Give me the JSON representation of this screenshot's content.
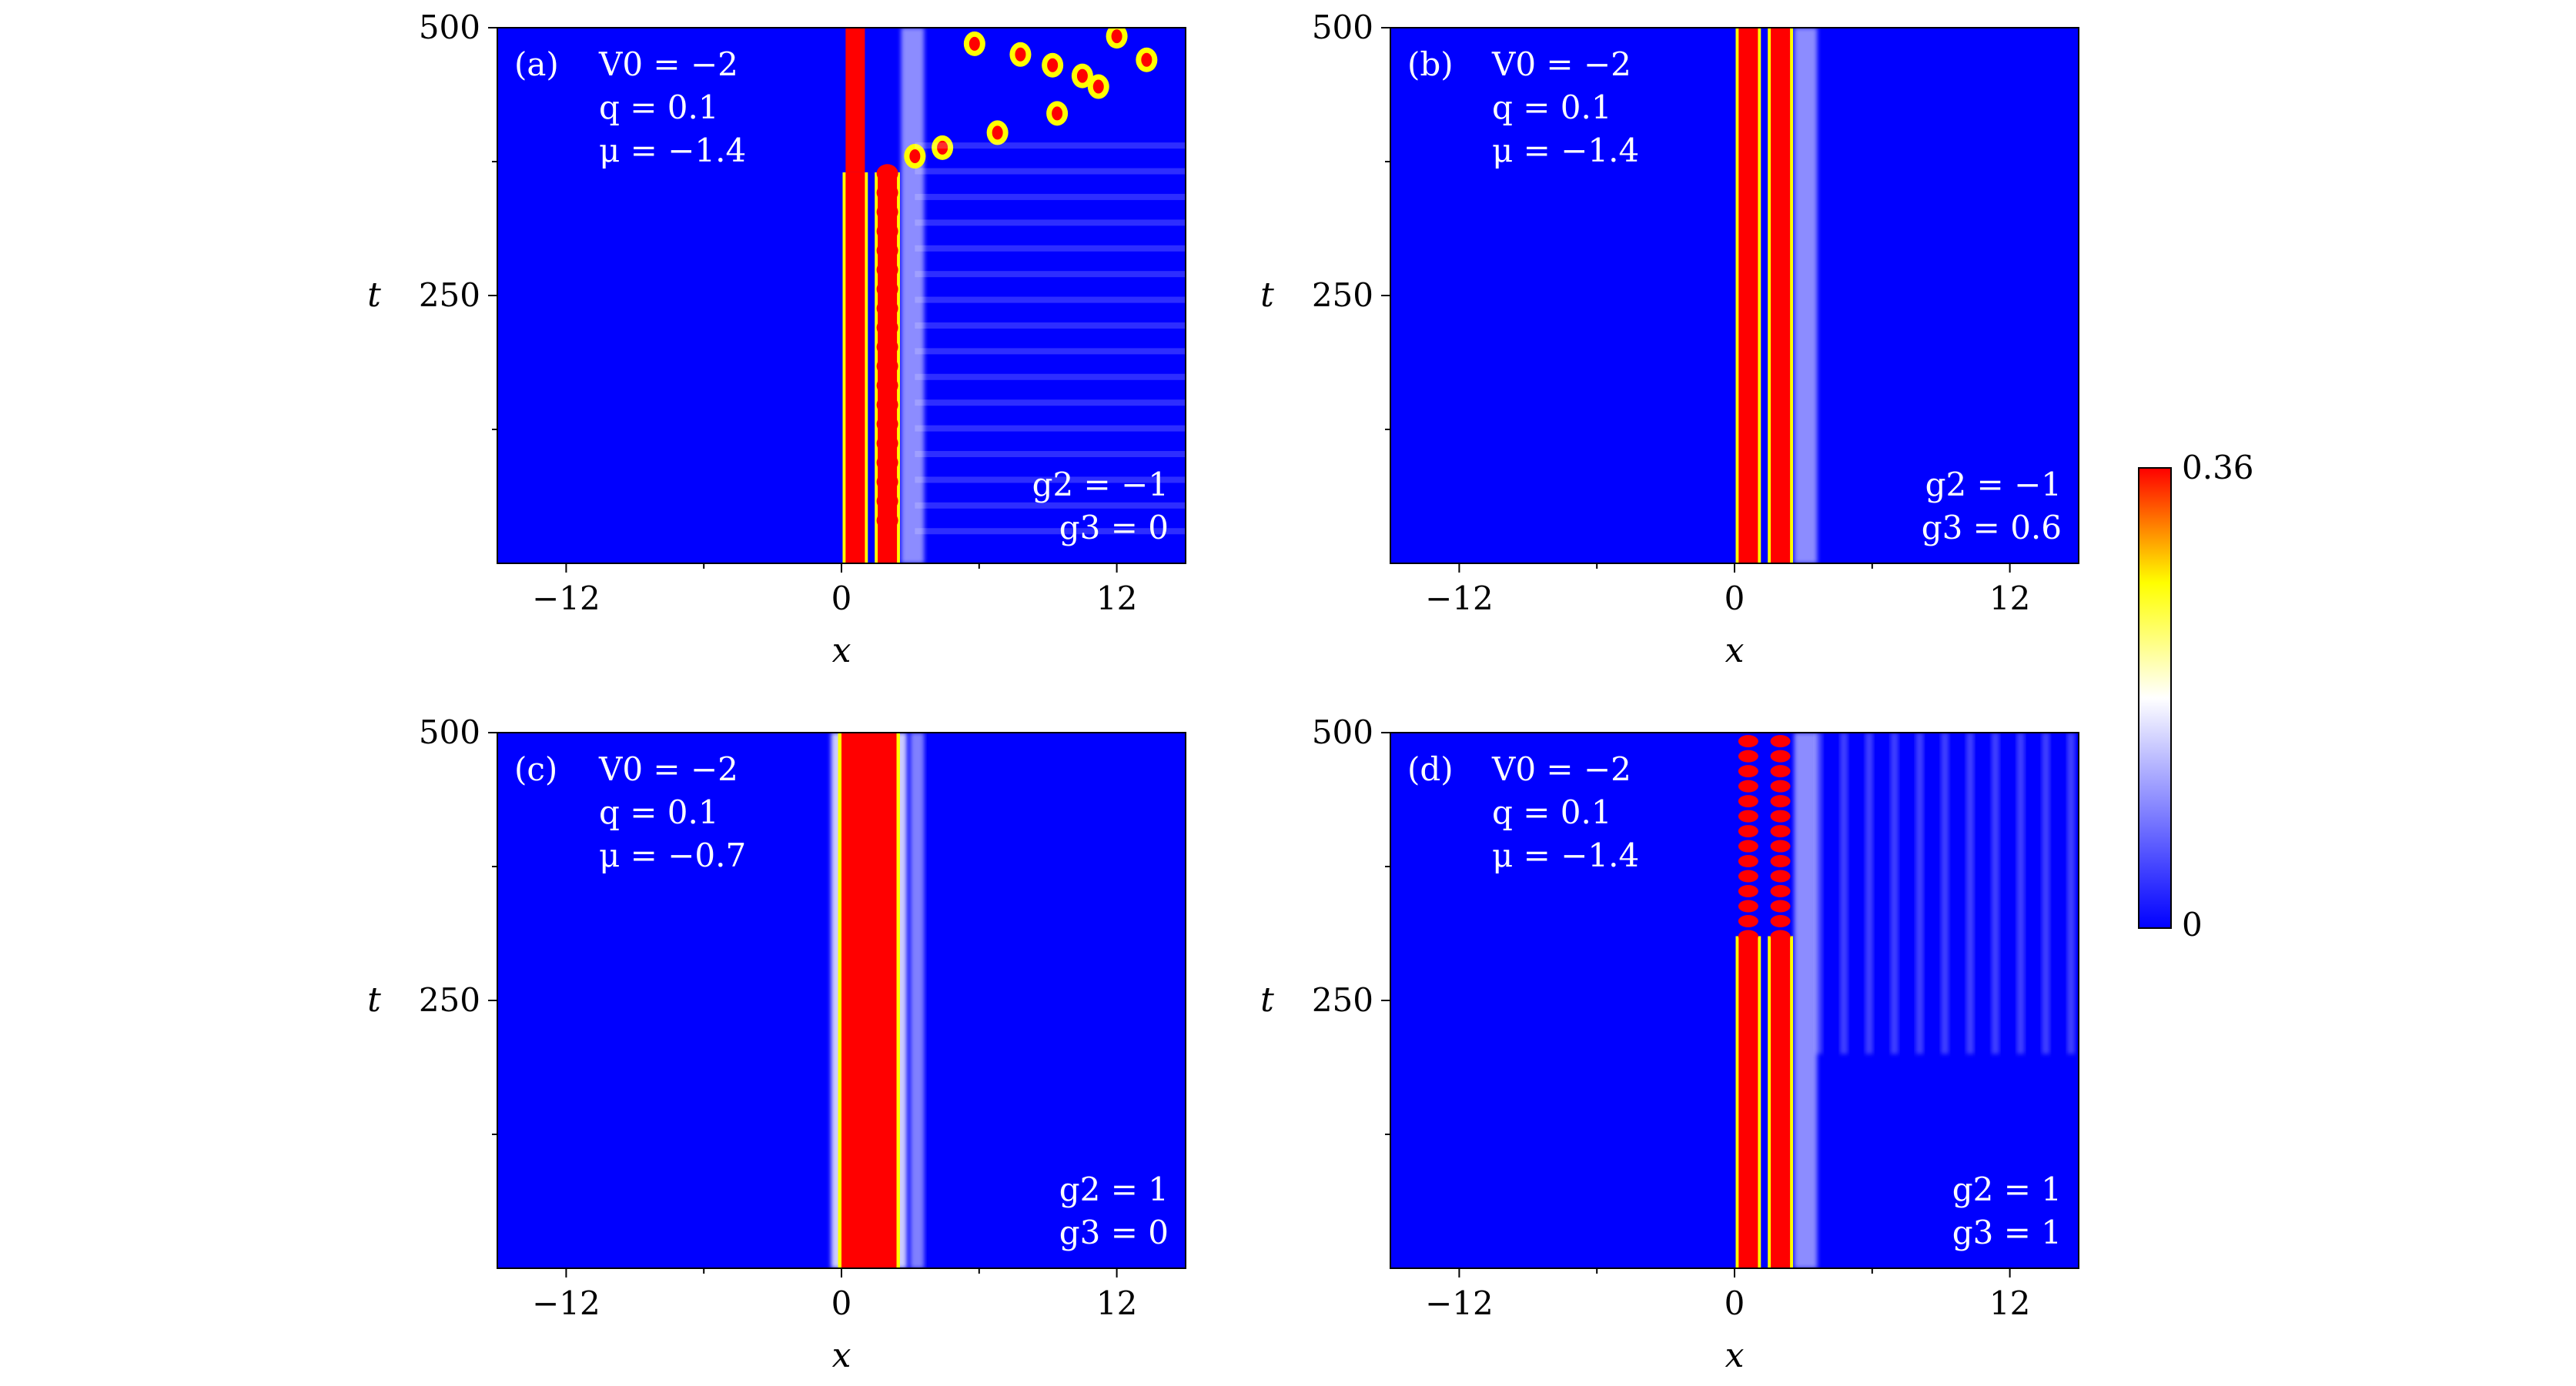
{
  "colors": {
    "low": "#0000ff",
    "mid": "#ffffff",
    "high_yellow": "#ffff00",
    "high": "#ff0000",
    "background": "#ffffff",
    "frame": "#000000"
  },
  "colorbar": {
    "min_label": "0",
    "max_label": "0.36",
    "range": [
      0,
      0.36
    ]
  },
  "chart_data": [
    {
      "type": "heatmap",
      "panel": "(a)",
      "params": [
        "V0 = −2",
        "q = 0.1",
        "μ = −1.4"
      ],
      "g_labels": [
        "g2 = −1",
        "g3 = 0"
      ],
      "xlabel": "x",
      "ylabel": "t",
      "xlim": [
        -15,
        15
      ],
      "ylim": [
        0,
        500
      ],
      "xticks": [
        "−12",
        "0",
        "12"
      ],
      "yticks": [
        "250",
        "500"
      ],
      "pattern": "breakup",
      "peaks_x": [
        0.6,
        2.0
      ],
      "breakup_t": 365
    },
    {
      "type": "heatmap",
      "panel": "(b)",
      "params": [
        "V0 = −2",
        "q = 0.1",
        "μ = −1.4"
      ],
      "g_labels": [
        "g2 = −1",
        "g3 = 0.6"
      ],
      "xlabel": "x",
      "ylabel": "t",
      "xlim": [
        -15,
        15
      ],
      "ylim": [
        0,
        500
      ],
      "xticks": [
        "−12",
        "0",
        "12"
      ],
      "yticks": [
        "250",
        "500"
      ],
      "pattern": "stable_two",
      "peaks_x": [
        0.6,
        2.0
      ]
    },
    {
      "type": "heatmap",
      "panel": "(c)",
      "params": [
        "V0 = −2",
        "q = 0.1",
        "μ = −0.7"
      ],
      "g_labels": [
        "g2 = 1",
        "g3 = 0"
      ],
      "xlabel": "x",
      "ylabel": "t",
      "xlim": [
        -15,
        15
      ],
      "ylim": [
        0,
        500
      ],
      "xticks": [
        "−12",
        "0",
        "12"
      ],
      "yticks": [
        "250",
        "500"
      ],
      "pattern": "stable_wide",
      "band_x": [
        0,
        2.4
      ]
    },
    {
      "type": "heatmap",
      "panel": "(d)",
      "params": [
        "V0 = −2",
        "q = 0.1",
        "μ = −1.4"
      ],
      "g_labels": [
        "g2 = 1",
        "g3 = 1"
      ],
      "xlabel": "x",
      "ylabel": "t",
      "xlim": [
        -15,
        15
      ],
      "ylim": [
        0,
        500
      ],
      "xticks": [
        "−12",
        "0",
        "12"
      ],
      "yticks": [
        "250",
        "500"
      ],
      "pattern": "oscillating",
      "peaks_x": [
        0.6,
        2.0
      ],
      "oscillation_start_t": 310
    }
  ]
}
